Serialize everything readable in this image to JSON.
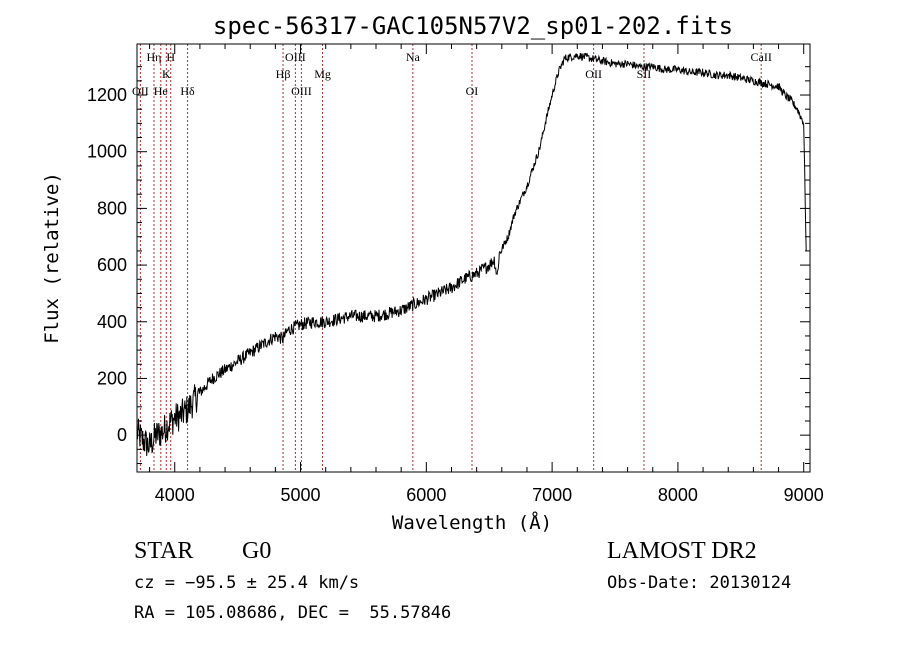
{
  "chart_data": {
    "type": "line",
    "title": "spec-56317-GAC105N57V2_sp01-202.fits",
    "xlabel": "Wavelength (Å)",
    "ylabel": "Flux (relative)",
    "xlim": [
      3700,
      9050
    ],
    "ylim": [
      -130,
      1380
    ],
    "x_ticks": [
      4000,
      5000,
      6000,
      7000,
      8000,
      9000
    ],
    "y_ticks": [
      0,
      200,
      400,
      600,
      800,
      1000,
      1200
    ],
    "grid": false,
    "line_color": "#000000",
    "spectrum": {
      "x": [
        3700,
        3750,
        3800,
        3850,
        3900,
        3950,
        4000,
        4050,
        4100,
        4150,
        4200,
        4300,
        4400,
        4500,
        4600,
        4700,
        4800,
        4861,
        4900,
        5000,
        5100,
        5200,
        5300,
        5400,
        5500,
        5600,
        5700,
        5800,
        5900,
        6000,
        6100,
        6200,
        6300,
        6400,
        6500,
        6540,
        6563,
        6580,
        6650,
        6700,
        6800,
        6900,
        6950,
        7000,
        7050,
        7100,
        7200,
        7300,
        7400,
        7500,
        7600,
        7700,
        7800,
        7900,
        8000,
        8100,
        8200,
        8300,
        8400,
        8500,
        8600,
        8700,
        8800,
        8850,
        8900,
        8950,
        9000,
        9020
      ],
      "y": [
        10,
        -20,
        -40,
        0,
        10,
        40,
        60,
        70,
        90,
        120,
        150,
        200,
        230,
        260,
        290,
        320,
        350,
        340,
        370,
        390,
        400,
        400,
        410,
        420,
        420,
        420,
        430,
        440,
        460,
        480,
        500,
        520,
        550,
        570,
        600,
        620,
        560,
        640,
        700,
        780,
        880,
        1010,
        1110,
        1200,
        1280,
        1330,
        1340,
        1330,
        1320,
        1310,
        1310,
        1300,
        1300,
        1290,
        1290,
        1280,
        1280,
        1270,
        1270,
        1260,
        1250,
        1240,
        1230,
        1200,
        1180,
        1150,
        1100,
        650
      ]
    },
    "lines": [
      {
        "label": "OII",
        "wave": 3727,
        "row": 3
      },
      {
        "label": "Hη",
        "wave": 3835,
        "row": 1
      },
      {
        "label": "H",
        "wave": 3968,
        "row": 1
      },
      {
        "label": "He",
        "wave": 3889,
        "row": 3
      },
      {
        "label": "K",
        "wave": 3933,
        "row": 2
      },
      {
        "label": "Hδ",
        "wave": 4102,
        "row": 3
      },
      {
        "label": "Hβ",
        "wave": 4861,
        "row": 2
      },
      {
        "label": "OIII",
        "wave": 4959,
        "row": 1
      },
      {
        "label": "OIII",
        "wave": 5007,
        "row": 3
      },
      {
        "label": "Mg",
        "wave": 5175,
        "row": 2
      },
      {
        "label": "Na",
        "wave": 5893,
        "row": 1
      },
      {
        "label": "OI",
        "wave": 6363,
        "row": 3
      },
      {
        "label": "OII",
        "wave": 7330,
        "row": 2
      },
      {
        "label": "SII",
        "wave": 7730,
        "row": 2
      },
      {
        "label": "CaII",
        "wave": 8662,
        "row": 1
      }
    ]
  },
  "info": {
    "object_class": "STAR",
    "subclass": "G0",
    "redshift": "cz = −95.5 ± 25.4 km/s",
    "coords": "RA = 105.08686, DEC =  55.57846",
    "survey": "LAMOST DR2",
    "obs_date": "Obs-Date: 20130124"
  }
}
